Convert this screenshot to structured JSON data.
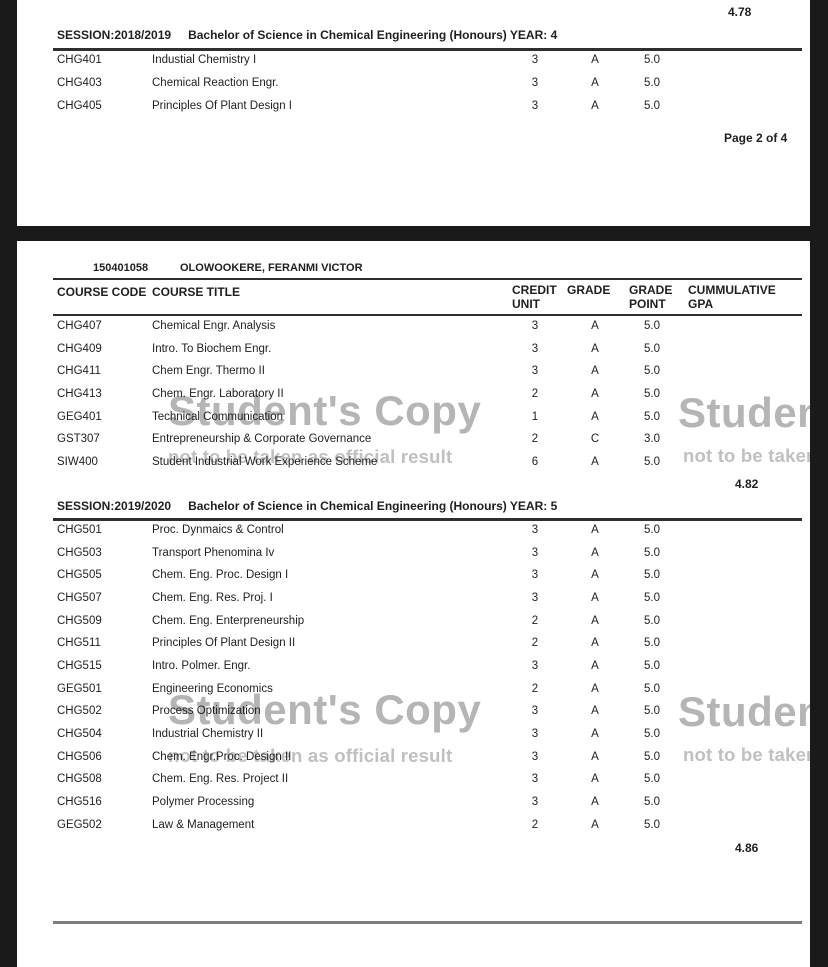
{
  "colors": {
    "viewer_background": "#1a1a1a",
    "page_background": "#ffffff",
    "ink": "#1f1f1f",
    "watermark_big": "#b5b5b5",
    "watermark_small": "#c0c0c0",
    "rule_dark": "#2f2f2f",
    "rule_gray": "#7d7d7d"
  },
  "watermark": {
    "line1": "Student's Copy",
    "line2": "not to be taken as official result"
  },
  "page1": {
    "previous_gpa": "4.78",
    "session": "SESSION:2018/2019",
    "program": "Bachelor of Science in Chemical Engineering (Honours) YEAR: 4",
    "rows": [
      {
        "code": "CHG401",
        "title": "Industial Chemistry I",
        "unit": "3",
        "grade": "A",
        "point": "5.0"
      },
      {
        "code": "CHG403",
        "title": "Chemical Reaction Engr.",
        "unit": "3",
        "grade": "A",
        "point": "5.0"
      },
      {
        "code": "CHG405",
        "title": "Principles Of Plant Design I",
        "unit": "3",
        "grade": "A",
        "point": "5.0"
      }
    ],
    "page_label": "Page 2 of 4"
  },
  "page2": {
    "student_id": "150401058",
    "student_name": "OLOWOOKERE, FERANMI VICTOR",
    "columns": {
      "code": "COURSE CODE",
      "title": "COURSE TITLE",
      "unit_l1": "CREDIT",
      "unit_l2": "UNIT",
      "grade": "GRADE",
      "point_l1": "GRADE",
      "point_l2": "POINT",
      "gpa_l1": "CUMMULATIVE",
      "gpa_l2": "GPA"
    },
    "section1": {
      "rows": [
        {
          "code": "CHG407",
          "title": "Chemical Engr. Analysis",
          "unit": "3",
          "grade": "A",
          "point": "5.0"
        },
        {
          "code": "CHG409",
          "title": "Intro. To Biochem Engr.",
          "unit": "3",
          "grade": "A",
          "point": "5.0"
        },
        {
          "code": "CHG411",
          "title": "Chem Engr. Thermo II",
          "unit": "3",
          "grade": "A",
          "point": "5.0"
        },
        {
          "code": "CHG413",
          "title": "Chem. Engr. Laboratory II",
          "unit": "2",
          "grade": "A",
          "point": "5.0"
        },
        {
          "code": "GEG401",
          "title": "Technical Communication",
          "unit": "1",
          "grade": "A",
          "point": "5.0"
        },
        {
          "code": "GST307",
          "title": "Entrepreneurship & Corporate Governance",
          "unit": "2",
          "grade": "C",
          "point": "3.0"
        },
        {
          "code": "SIW400",
          "title": "Student Industrial Work Experience Scheme",
          "unit": "6",
          "grade": "A",
          "point": "5.0"
        }
      ],
      "gpa": "4.82"
    },
    "session2": {
      "session": "SESSION:2019/2020",
      "program": "Bachelor of Science in Chemical Engineering (Honours) YEAR: 5"
    },
    "section2": {
      "rows": [
        {
          "code": "CHG501",
          "title": "Proc. Dynmaics & Control",
          "unit": "3",
          "grade": "A",
          "point": "5.0"
        },
        {
          "code": "CHG503",
          "title": "Transport Phenomina Iv",
          "unit": "3",
          "grade": "A",
          "point": "5.0"
        },
        {
          "code": "CHG505",
          "title": "Chem. Eng. Proc. Design I",
          "unit": "3",
          "grade": "A",
          "point": "5.0"
        },
        {
          "code": "CHG507",
          "title": "Chem. Eng. Res. Proj. I",
          "unit": "3",
          "grade": "A",
          "point": "5.0"
        },
        {
          "code": "CHG509",
          "title": "Chem. Eng. Enterpreneurship",
          "unit": "2",
          "grade": "A",
          "point": "5.0"
        },
        {
          "code": "CHG511",
          "title": "Principles Of Plant Design II",
          "unit": "2",
          "grade": "A",
          "point": "5.0"
        },
        {
          "code": "CHG515",
          "title": "Intro. Polmer. Engr.",
          "unit": "3",
          "grade": "A",
          "point": "5.0"
        },
        {
          "code": "GEG501",
          "title": "Engineering Economics",
          "unit": "2",
          "grade": "A",
          "point": "5.0"
        },
        {
          "code": "CHG502",
          "title": "Process Optimization",
          "unit": "3",
          "grade": "A",
          "point": "5.0"
        },
        {
          "code": "CHG504",
          "title": "Industrial Chemistry II",
          "unit": "3",
          "grade": "A",
          "point": "5.0"
        },
        {
          "code": "CHG506",
          "title": "Chem. Engr.Proc. Design II",
          "unit": "3",
          "grade": "A",
          "point": "5.0"
        },
        {
          "code": "CHG508",
          "title": "Chem. Eng. Res. Project II",
          "unit": "3",
          "grade": "A",
          "point": "5.0"
        },
        {
          "code": "CHG516",
          "title": "Polymer Processing",
          "unit": "3",
          "grade": "A",
          "point": "5.0"
        },
        {
          "code": "GEG502",
          "title": "Law & Management",
          "unit": "2",
          "grade": "A",
          "point": "5.0"
        }
      ],
      "gpa": "4.86"
    }
  }
}
